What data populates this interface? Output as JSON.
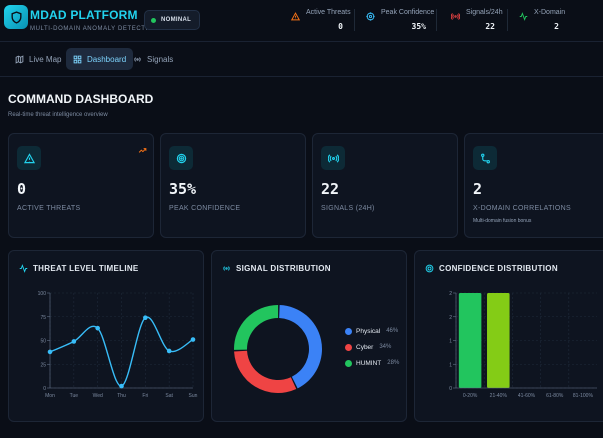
{
  "app": {
    "title": "MDAD PLATFORM",
    "subtitle": "MULTI-DOMAIN ANOMALY DETECTION",
    "status": "NOMINAL"
  },
  "header_metrics": [
    {
      "label": "Active Threats",
      "value": "0",
      "icon": "warning-triangle-icon",
      "color": "#f97316"
    },
    {
      "label": "Peak Confidence",
      "value": "35%",
      "icon": "target-icon",
      "color": "#38bdf8"
    },
    {
      "label": "Signals/24h",
      "value": "22",
      "icon": "radio-signal-icon",
      "color": "#ef4444"
    },
    {
      "label": "X-Domain",
      "value": "2",
      "icon": "activity-icon",
      "color": "#22c55e"
    }
  ],
  "nav": {
    "tabs": [
      {
        "label": "Live Map",
        "icon": "map-icon"
      },
      {
        "label": "Dashboard",
        "icon": "dashboard-icon",
        "active": true
      },
      {
        "label": "Signals",
        "icon": "radio-signal-icon"
      }
    ]
  },
  "page": {
    "title": "COMMAND DASHBOARD",
    "subtitle": "Real-time threat intelligence overview"
  },
  "stats": [
    {
      "value": "0",
      "label": "ACTIVE THREATS",
      "icon": "warning-triangle-icon",
      "trend_icon": "trending-up-icon"
    },
    {
      "value": "35%",
      "label": "PEAK CONFIDENCE",
      "icon": "target-icon"
    },
    {
      "value": "22",
      "label": "SIGNALS (24H)",
      "icon": "radio-signal-icon"
    },
    {
      "value": "2",
      "label": "X-DOMAIN CORRELATIONS",
      "sub": "Multi-domain fusion bonus",
      "icon": "route-icon"
    }
  ],
  "panels": {
    "timeline": "THREAT LEVEL TIMELINE",
    "distribution": "SIGNAL DISTRIBUTION",
    "confidence": "CONFIDENCE DISTRIBUTION"
  },
  "colors": {
    "accent": "#22d3ee",
    "physical": "#3b82f6",
    "cyber": "#ef4444",
    "humint": "#22c55e",
    "bar1": "#22c55e",
    "bar2": "#84cc16"
  },
  "chart_data": [
    {
      "type": "line",
      "title": "THREAT LEVEL TIMELINE",
      "categories": [
        "Mon",
        "Tue",
        "Wed",
        "Thu",
        "Fri",
        "Sat",
        "Sun"
      ],
      "values": [
        38,
        49,
        63,
        2,
        74,
        39,
        51
      ],
      "ylim": [
        0,
        100
      ],
      "yticks": [
        "0",
        "25",
        "50",
        "75",
        "100"
      ],
      "grid": true
    },
    {
      "type": "pie",
      "title": "SIGNAL DISTRIBUTION",
      "categories": [
        "Physical",
        "Cyber",
        "HUMINT"
      ],
      "values": [
        46,
        34,
        28
      ],
      "labels": [
        "46%",
        "34%",
        "28%"
      ],
      "legend": "right"
    },
    {
      "type": "bar",
      "title": "CONFIDENCE DISTRIBUTION",
      "categories": [
        "0-20%",
        "21-40%",
        "41-60%",
        "61-80%",
        "81-100%"
      ],
      "values": [
        2,
        2,
        0,
        0,
        0
      ],
      "ylim": [
        0,
        2
      ],
      "yticks": [
        "0",
        "1",
        "1",
        "2",
        "2"
      ],
      "grid": true
    }
  ]
}
